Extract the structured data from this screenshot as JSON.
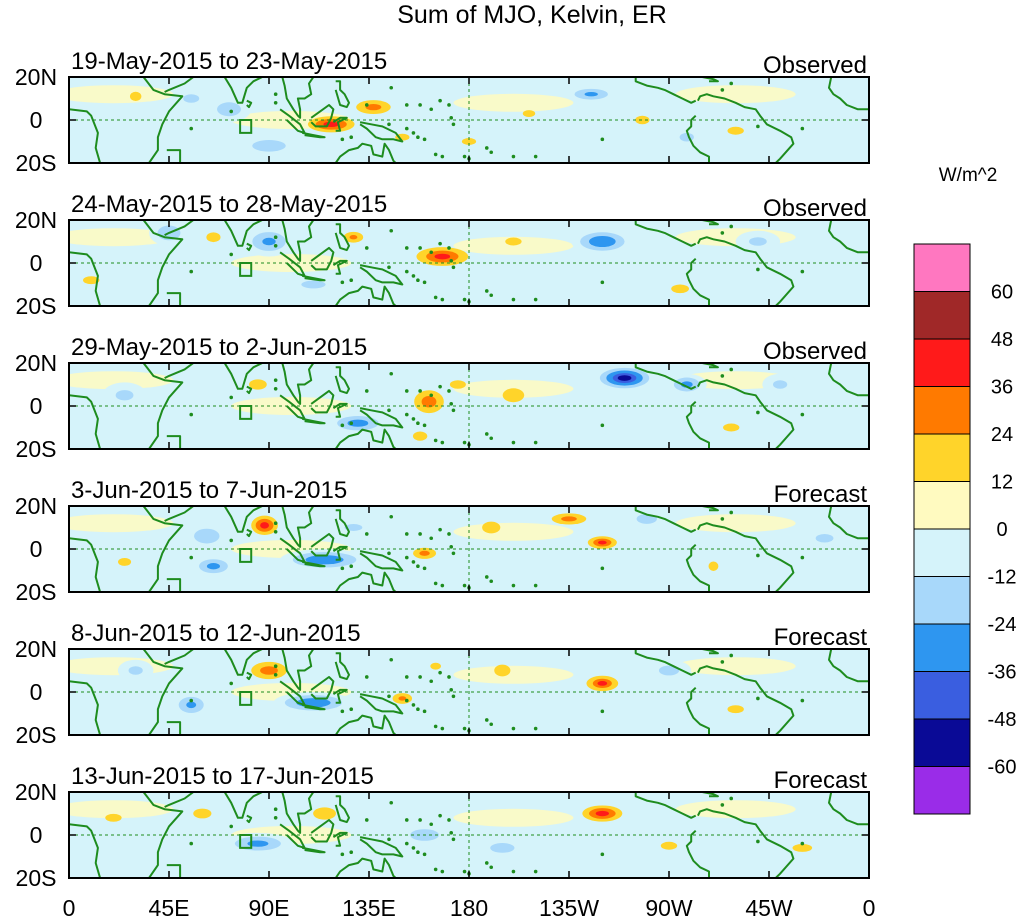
{
  "chart_data": {
    "type": "heatmap",
    "title": "Sum of MJO, Kelvin, ER",
    "units": "W/m^2",
    "lat_range": [
      -20,
      20
    ],
    "lon_range": [
      0,
      360
    ],
    "y_tick_labels": [
      "20N",
      "0",
      "20S"
    ],
    "x_tick_labels": [
      "0",
      "45E",
      "90E",
      "135E",
      "180",
      "135W",
      "90W",
      "45W",
      "0"
    ],
    "colorbar": {
      "levels": [
        -60,
        -48,
        -36,
        -24,
        -12,
        0,
        12,
        24,
        36,
        48,
        60
      ],
      "tick_labels": [
        "60",
        "48",
        "36",
        "24",
        "12",
        "0",
        "-12",
        "-24",
        "-36",
        "-48",
        "-60"
      ],
      "colors_top_to_bottom": [
        "#ff77c0",
        "#a02828",
        "#ff1a1a",
        "#ff7a00",
        "#ffd42a",
        "#fffac0",
        "#d5f3fa",
        "#a8d8fa",
        "#2e96f0",
        "#3a5ee0",
        "#0a0a96",
        "#9a2ce8"
      ]
    },
    "panels": [
      {
        "dates": "19-May-2015 to 23-May-2015",
        "type": "Observed",
        "anomalies": [
          {
            "lon": 30,
            "lat": 11,
            "v": 15,
            "rx": 6,
            "ry": 5
          },
          {
            "lon": 55,
            "lat": 10,
            "v": -14,
            "rx": 9,
            "ry": 5
          },
          {
            "lon": 72,
            "lat": 5,
            "v": -20,
            "rx": 10,
            "ry": 6
          },
          {
            "lon": 90,
            "lat": -12,
            "v": -20,
            "rx": 14,
            "ry": 5
          },
          {
            "lon": 118,
            "lat": -2,
            "v": 42,
            "rx": 14,
            "ry": 5
          },
          {
            "lon": 137,
            "lat": 6,
            "v": 28,
            "rx": 12,
            "ry": 5
          },
          {
            "lon": 150,
            "lat": -8,
            "v": 14,
            "rx": 8,
            "ry": 4
          },
          {
            "lon": 180,
            "lat": -10,
            "v": 14,
            "rx": 8,
            "ry": 4
          },
          {
            "lon": 207,
            "lat": 3,
            "v": 14,
            "rx": 7,
            "ry": 4
          },
          {
            "lon": 235,
            "lat": 12,
            "v": -26,
            "rx": 12,
            "ry": 4
          },
          {
            "lon": 258,
            "lat": 0,
            "v": 14,
            "rx": 8,
            "ry": 5
          },
          {
            "lon": 278,
            "lat": -8,
            "v": -14,
            "rx": 8,
            "ry": 5
          },
          {
            "lon": 300,
            "lat": -5,
            "v": 13,
            "rx": 10,
            "ry": 5
          }
        ]
      },
      {
        "dates": "24-May-2015 to 28-May-2015",
        "type": "Observed",
        "anomalies": [
          {
            "lon": 10,
            "lat": -8,
            "v": 13,
            "rx": 10,
            "ry": 5
          },
          {
            "lon": 45,
            "lat": 14,
            "v": -22,
            "rx": 9,
            "ry": 6
          },
          {
            "lon": 65,
            "lat": 12,
            "v": 16,
            "rx": 7,
            "ry": 5
          },
          {
            "lon": 90,
            "lat": 10,
            "v": -26,
            "rx": 12,
            "ry": 7
          },
          {
            "lon": 110,
            "lat": -10,
            "v": -16,
            "rx": 12,
            "ry": 4
          },
          {
            "lon": 128,
            "lat": 12,
            "v": 26,
            "rx": 7,
            "ry": 4
          },
          {
            "lon": 168,
            "lat": 3,
            "v": 38,
            "rx": 16,
            "ry": 6
          },
          {
            "lon": 200,
            "lat": 10,
            "v": 13,
            "rx": 10,
            "ry": 5
          },
          {
            "lon": 240,
            "lat": 10,
            "v": -36,
            "rx": 14,
            "ry": 6
          },
          {
            "lon": 275,
            "lat": -12,
            "v": 14,
            "rx": 10,
            "ry": 5
          },
          {
            "lon": 310,
            "lat": 10,
            "v": -14,
            "rx": 10,
            "ry": 5
          }
        ]
      },
      {
        "dates": "29-May-2015 to 2-Jun-2015",
        "type": "Observed",
        "anomalies": [
          {
            "lon": 25,
            "lat": 5,
            "v": -14,
            "rx": 10,
            "ry": 6
          },
          {
            "lon": 85,
            "lat": 10,
            "v": 14,
            "rx": 10,
            "ry": 6
          },
          {
            "lon": 130,
            "lat": -8,
            "v": -30,
            "rx": 14,
            "ry": 5
          },
          {
            "lon": 162,
            "lat": 2,
            "v": 30,
            "rx": 10,
            "ry": 8
          },
          {
            "lon": 158,
            "lat": -14,
            "v": 20,
            "rx": 6,
            "ry": 4
          },
          {
            "lon": 175,
            "lat": 10,
            "v": 14,
            "rx": 9,
            "ry": 5
          },
          {
            "lon": 200,
            "lat": 5,
            "v": 20,
            "rx": 9,
            "ry": 6
          },
          {
            "lon": 250,
            "lat": 13,
            "v": -52,
            "rx": 14,
            "ry": 6
          },
          {
            "lon": 278,
            "lat": 10,
            "v": -28,
            "rx": 9,
            "ry": 5
          },
          {
            "lon": 320,
            "lat": 10,
            "v": -14,
            "rx": 8,
            "ry": 5
          },
          {
            "lon": 298,
            "lat": -10,
            "v": 13,
            "rx": 10,
            "ry": 5
          }
        ]
      },
      {
        "dates": "3-Jun-2015 to 7-Jun-2015",
        "type": "Forecast",
        "anomalies": [
          {
            "lon": 25,
            "lat": -6,
            "v": 13,
            "rx": 8,
            "ry": 5
          },
          {
            "lon": 62,
            "lat": 6,
            "v": -22,
            "rx": 10,
            "ry": 6
          },
          {
            "lon": 65,
            "lat": -8,
            "v": -28,
            "rx": 10,
            "ry": 5
          },
          {
            "lon": 88,
            "lat": 11,
            "v": 42,
            "rx": 8,
            "ry": 6
          },
          {
            "lon": 115,
            "lat": -5,
            "v": -36,
            "rx": 20,
            "ry": 5
          },
          {
            "lon": 128,
            "lat": 10,
            "v": -14,
            "rx": 10,
            "ry": 4
          },
          {
            "lon": 160,
            "lat": -2,
            "v": 28,
            "rx": 8,
            "ry": 4
          },
          {
            "lon": 190,
            "lat": 10,
            "v": 16,
            "rx": 9,
            "ry": 6
          },
          {
            "lon": 225,
            "lat": 14,
            "v": 28,
            "rx": 12,
            "ry": 4
          },
          {
            "lon": 240,
            "lat": 3,
            "v": 38,
            "rx": 9,
            "ry": 4
          },
          {
            "lon": 260,
            "lat": 14,
            "v": -22,
            "rx": 8,
            "ry": 4
          },
          {
            "lon": 290,
            "lat": -8,
            "v": 13,
            "rx": 6,
            "ry": 6
          },
          {
            "lon": 340,
            "lat": 5,
            "v": -14,
            "rx": 10,
            "ry": 5
          }
        ]
      },
      {
        "dates": "8-Jun-2015 to 12-Jun-2015",
        "type": "Forecast",
        "anomalies": [
          {
            "lon": 30,
            "lat": 10,
            "v": -14,
            "rx": 8,
            "ry": 5
          },
          {
            "lon": 55,
            "lat": -6,
            "v": -26,
            "rx": 9,
            "ry": 6
          },
          {
            "lon": 90,
            "lat": 10,
            "v": 30,
            "rx": 12,
            "ry": 6
          },
          {
            "lon": 110,
            "lat": -5,
            "v": -36,
            "rx": 18,
            "ry": 5
          },
          {
            "lon": 150,
            "lat": -3,
            "v": 26,
            "rx": 7,
            "ry": 4
          },
          {
            "lon": 165,
            "lat": 12,
            "v": 14,
            "rx": 6,
            "ry": 4
          },
          {
            "lon": 195,
            "lat": 10,
            "v": 16,
            "rx": 8,
            "ry": 6
          },
          {
            "lon": 240,
            "lat": 4,
            "v": 36,
            "rx": 10,
            "ry": 5
          },
          {
            "lon": 270,
            "lat": 10,
            "v": -16,
            "rx": 10,
            "ry": 5
          },
          {
            "lon": 300,
            "lat": -8,
            "v": 13,
            "rx": 10,
            "ry": 5
          }
        ]
      },
      {
        "dates": "13-Jun-2015 to 17-Jun-2015",
        "type": "Forecast",
        "anomalies": [
          {
            "lon": 20,
            "lat": 8,
            "v": 13,
            "rx": 10,
            "ry": 5
          },
          {
            "lon": 60,
            "lat": 10,
            "v": 16,
            "rx": 9,
            "ry": 5
          },
          {
            "lon": 85,
            "lat": -4,
            "v": -28,
            "rx": 16,
            "ry": 5
          },
          {
            "lon": 115,
            "lat": 10,
            "v": 22,
            "rx": 9,
            "ry": 5
          },
          {
            "lon": 160,
            "lat": 0,
            "v": -20,
            "rx": 12,
            "ry": 5
          },
          {
            "lon": 195,
            "lat": -6,
            "v": -16,
            "rx": 12,
            "ry": 5
          },
          {
            "lon": 240,
            "lat": 10,
            "v": 42,
            "rx": 12,
            "ry": 5
          },
          {
            "lon": 270,
            "lat": -5,
            "v": 13,
            "rx": 10,
            "ry": 5
          },
          {
            "lon": 330,
            "lat": -6,
            "v": 13,
            "rx": 12,
            "ry": 5
          }
        ]
      }
    ]
  }
}
